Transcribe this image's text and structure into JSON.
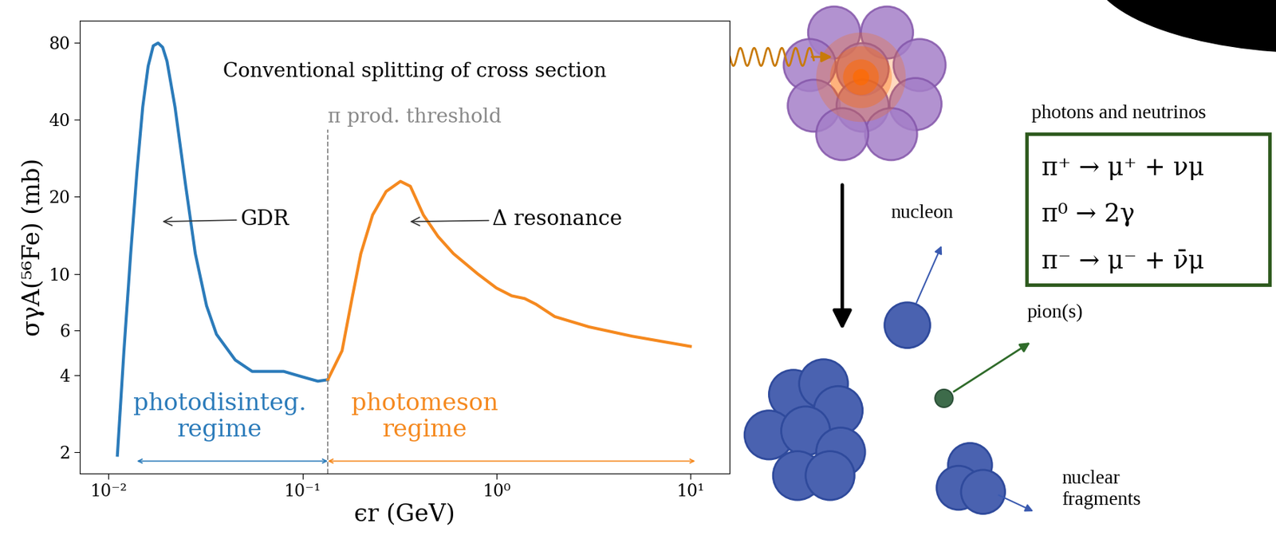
{
  "chart_data": {
    "type": "line",
    "title": "Conventional splitting of cross section",
    "xlabel": "ϵr (GeV)",
    "ylabel": "σγA(⁵⁶Fe) (mb)",
    "log": true,
    "grid": false,
    "xlim": [
      0.0071,
      16
    ],
    "ylim": [
      1.65,
      98
    ],
    "xticks": [
      {
        "value": 0.01,
        "label": "10⁻²"
      },
      {
        "value": 0.1,
        "label": "10⁻¹"
      },
      {
        "value": 1,
        "label": "10⁰"
      },
      {
        "value": 10,
        "label": "10¹"
      }
    ],
    "yticks": [
      2,
      4,
      6,
      10,
      20,
      40,
      80
    ],
    "series": [
      {
        "color": "#2b7bba",
        "line_style": "solid",
        "x": [
          0.0111,
          0.012,
          0.013,
          0.014,
          0.015,
          0.016,
          0.017,
          0.018,
          0.019,
          0.02,
          0.022,
          0.025,
          0.028,
          0.032,
          0.036,
          0.045,
          0.055,
          0.065,
          0.08,
          0.1,
          0.12,
          0.135
        ],
        "values": [
          1.95,
          5,
          12,
          25,
          45,
          65,
          78,
          80,
          77,
          68,
          45,
          22,
          12,
          7.5,
          5.8,
          4.6,
          4.15,
          4.15,
          4.15,
          3.95,
          3.8,
          3.85
        ]
      },
      {
        "color": "#f5891f",
        "line_style": "solid",
        "x": [
          0.135,
          0.16,
          0.18,
          0.2,
          0.23,
          0.27,
          0.32,
          0.36,
          0.42,
          0.5,
          0.6,
          0.8,
          1.0,
          1.2,
          1.4,
          1.6,
          2,
          3,
          5,
          10
        ],
        "values": [
          3.85,
          5,
          8,
          12,
          17,
          21,
          23,
          22,
          17,
          14,
          12,
          10,
          8.8,
          8.2,
          8.0,
          7.6,
          6.8,
          6.2,
          5.7,
          5.2
        ]
      }
    ],
    "threshold": {
      "x": 0.135,
      "label": "π prod. threshold",
      "color": "#888888"
    },
    "annotations": [
      {
        "text": "GDR",
        "x": 0.0185,
        "y": 16
      },
      {
        "text": "Δ resonance",
        "x": 0.35,
        "y": 16
      }
    ],
    "regimes": [
      {
        "text": "photodisinteg.\nregime",
        "color": "#2b7bba",
        "span": [
          0.014,
          0.135
        ],
        "y": 1.85
      },
      {
        "text": "photomeson\nregime",
        "color": "#f5891f",
        "span": [
          0.135,
          10.6
        ],
        "y": 1.85
      }
    ]
  },
  "diagram": {
    "products_title": "photons and neutrinos",
    "decays": [
      "π⁺ → μ⁺ + νμ",
      "π⁰ → 2γ",
      "π⁻ → μ⁻ + ν̄μ"
    ],
    "nucleon": "nucleon",
    "pions": "pion(s)",
    "fragments": "nuclear\nfragments"
  }
}
